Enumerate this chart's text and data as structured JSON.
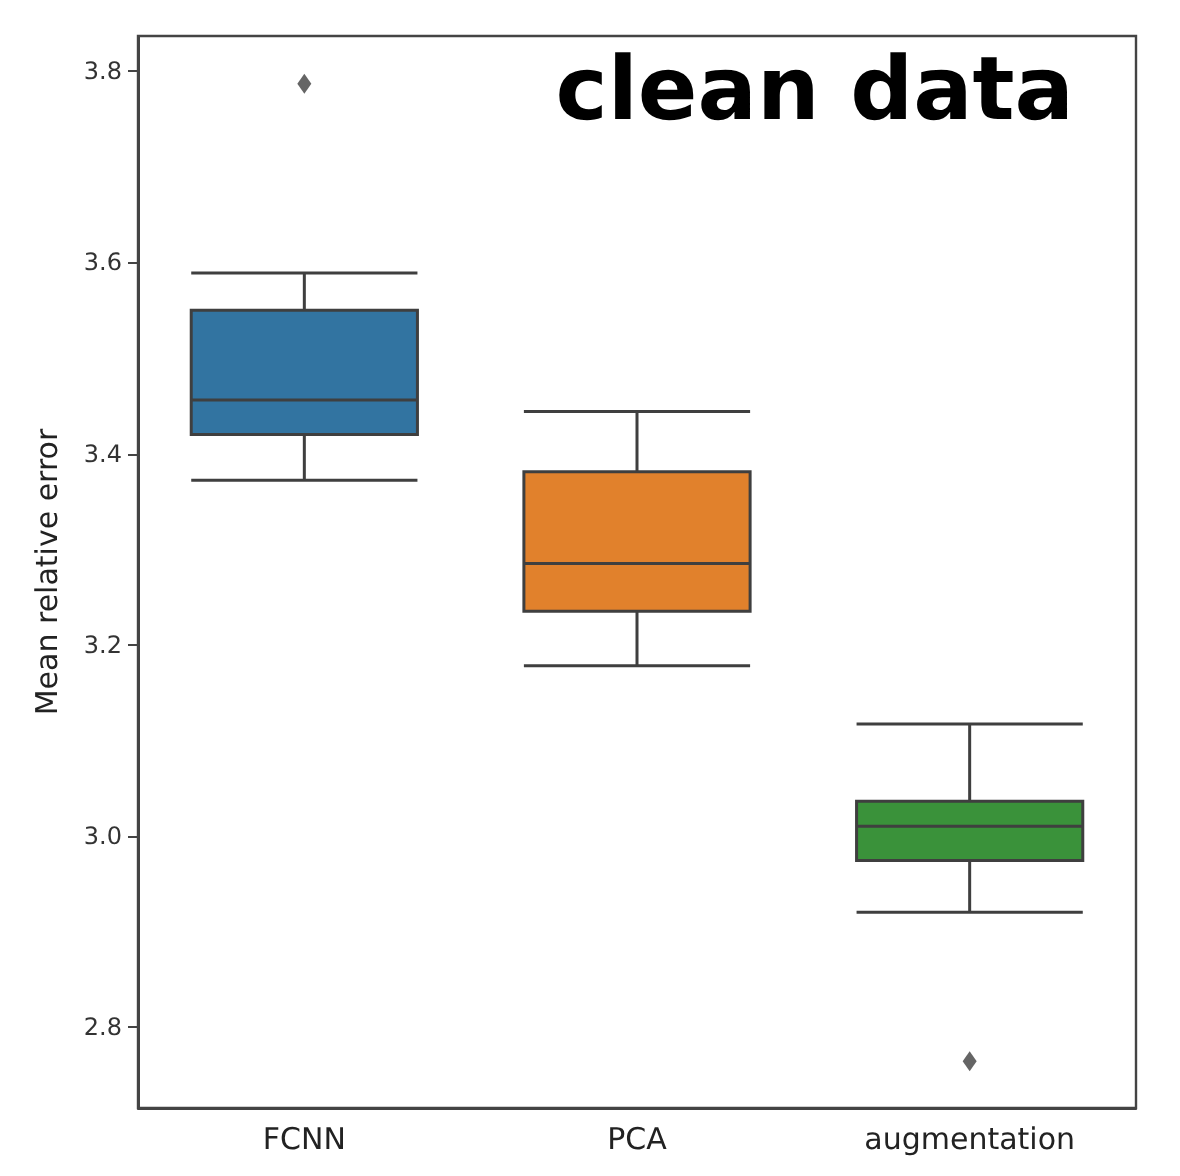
{
  "chart_data": {
    "type": "box",
    "title": "clean data",
    "ylabel": "Mean relative error",
    "categories": [
      "FCNN",
      "PCA",
      "augmentation"
    ],
    "colors": [
      "#3274a1",
      "#e1812c",
      "#3a923a"
    ],
    "boxes": [
      {
        "low": 3.372,
        "q1": 3.42,
        "median": 3.456,
        "q3": 3.55,
        "high": 3.589,
        "outliers": [
          3.787
        ]
      },
      {
        "low": 3.178,
        "q1": 3.235,
        "median": 3.285,
        "q3": 3.381,
        "high": 3.444
      },
      {
        "low": 2.92,
        "q1": 2.974,
        "median": 3.01,
        "q3": 3.036,
        "high": 3.117,
        "outliers": [
          2.764
        ]
      }
    ],
    "ylim": [
      2.715,
      3.837
    ],
    "yticks": [
      2.8,
      {
        "value": 3.0,
        "label": "3.0"
      },
      3.2,
      3.4,
      3.6,
      3.8
    ],
    "grid": false,
    "marker": "diamond"
  }
}
